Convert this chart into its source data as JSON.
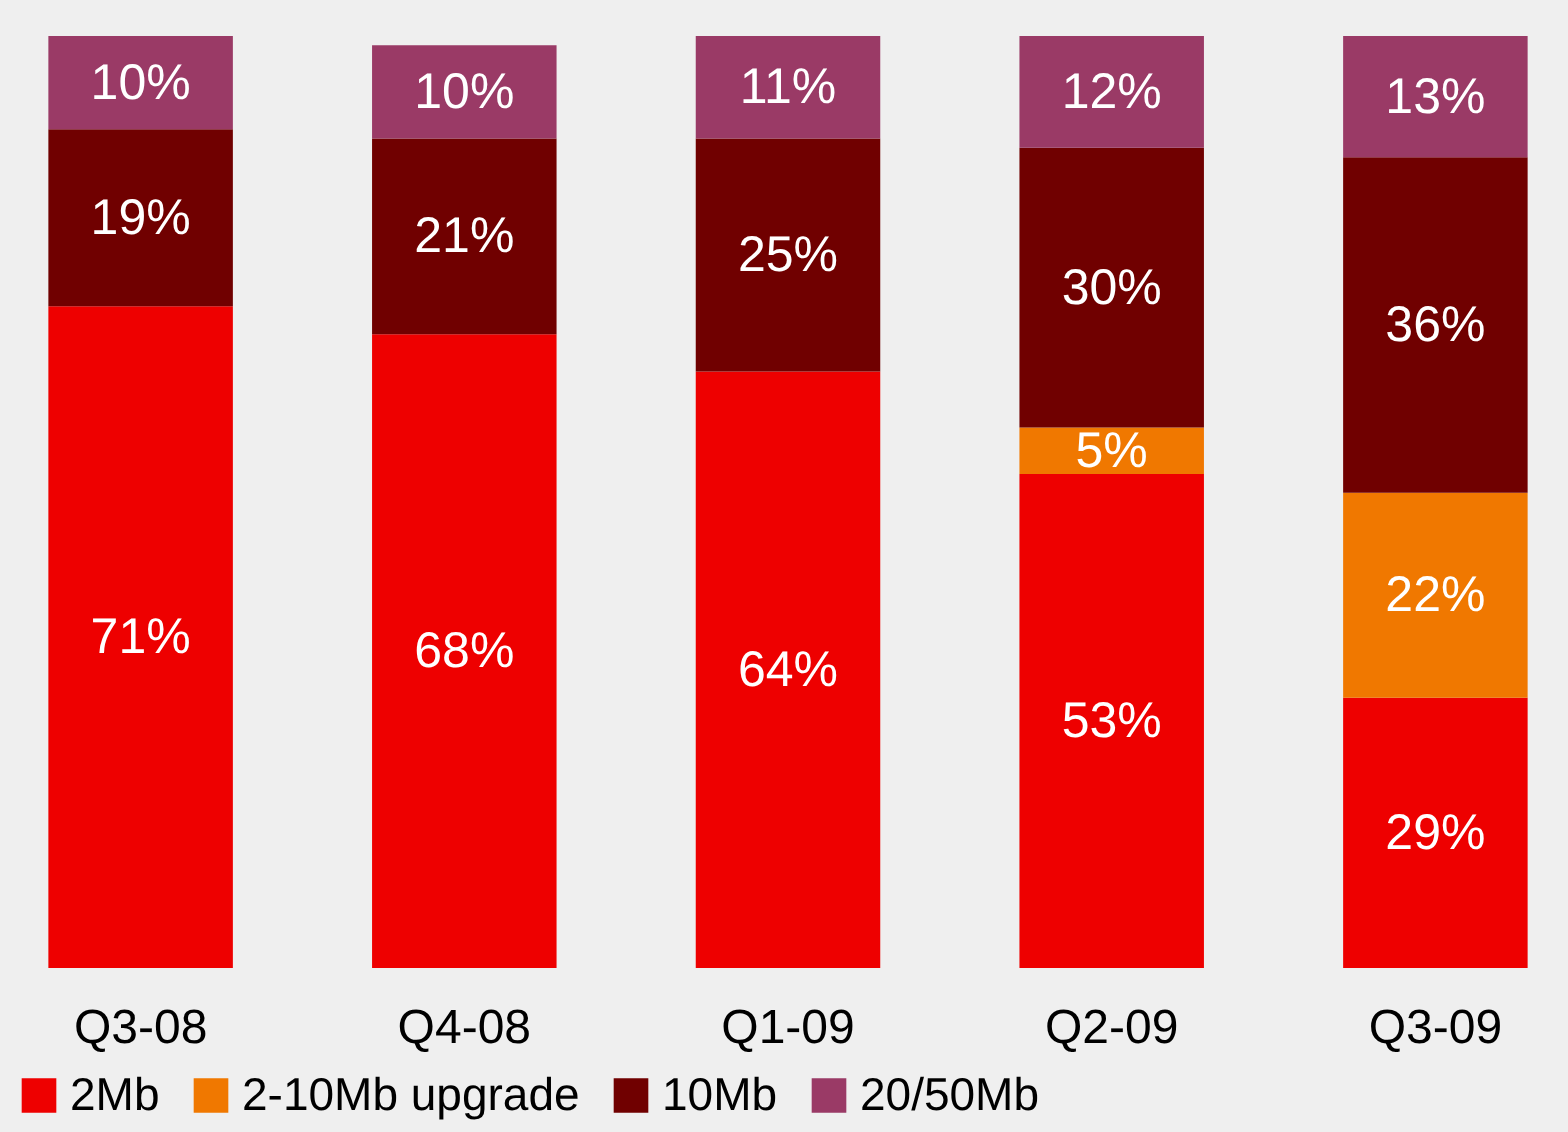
{
  "chart_data": {
    "type": "bar",
    "stacked": true,
    "legend": "bottom",
    "categories": [
      "Q3-08",
      "Q4-08",
      "Q1-09",
      "Q2-09",
      "Q3-09"
    ],
    "series": [
      {
        "name": "2Mb",
        "color": "#ee0000",
        "values": [
          71,
          68,
          64,
          53,
          29
        ],
        "value_labels": [
          "71%",
          "68%",
          "64%",
          "53%",
          "29%"
        ]
      },
      {
        "name": "2-10Mb upgrade",
        "color": "#f07800",
        "values": [
          null,
          null,
          null,
          5,
          22
        ],
        "value_labels": [
          null,
          null,
          null,
          "5%",
          "22%"
        ]
      },
      {
        "name": "10Mb",
        "color": "#700000",
        "values": [
          19,
          21,
          25,
          30,
          36
        ],
        "value_labels": [
          "19%",
          "21%",
          "25%",
          "30%",
          "36%"
        ]
      },
      {
        "name": "20/50Mb",
        "color": "#9a3a66",
        "values": [
          10,
          10,
          11,
          12,
          13
        ],
        "value_labels": [
          "10%",
          "10%",
          "11%",
          "12%",
          "13%"
        ]
      }
    ]
  }
}
